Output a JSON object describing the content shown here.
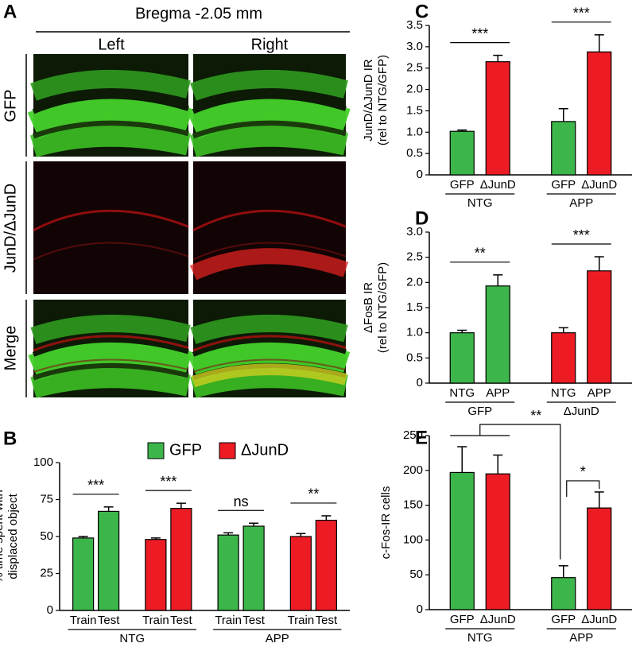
{
  "panel_a": {
    "panel": "A",
    "title": "Bregma -2.05 mm",
    "columns": [
      "Left",
      "Right"
    ],
    "rows": [
      "GFP",
      "JunD/ΔJunD",
      "Merge"
    ]
  },
  "chart_data": [
    {
      "type": "bar",
      "panel": "B",
      "ylabel": [
        "% time spent with",
        "displaced object"
      ],
      "categories": [
        "Train",
        "Test",
        "Train",
        "Test",
        "Train",
        "Test",
        "Train",
        "Test"
      ],
      "series": [
        {
          "name": "GFP",
          "color": "#3cb54a",
          "values": [
            49,
            67,
            null,
            null,
            51,
            57,
            null,
            null
          ],
          "errors": [
            1,
            3,
            null,
            null,
            1.5,
            2,
            null,
            null
          ]
        },
        {
          "name": "ΔJunD",
          "color": "#ed1c24",
          "values": [
            null,
            null,
            48,
            69,
            null,
            null,
            50,
            61
          ],
          "errors": [
            null,
            null,
            1,
            3.5,
            null,
            null,
            2,
            3
          ]
        }
      ],
      "groups": [
        "NTG",
        "APP"
      ],
      "significance": [
        "***",
        "***",
        "ns",
        "**"
      ],
      "ylim": [
        0,
        100
      ],
      "yticks": [
        0,
        25,
        50,
        75,
        100
      ]
    },
    {
      "type": "bar",
      "panel": "C",
      "ylabel": [
        "JunD/ΔJunD IR",
        "(rel to NTG/GFP)"
      ],
      "categories": [
        "GFP",
        "ΔJunD",
        "GFP",
        "ΔJunD"
      ],
      "values": [
        1.02,
        2.65,
        1.25,
        2.88
      ],
      "errors": [
        0.03,
        0.15,
        0.3,
        0.4
      ],
      "colors": [
        "#3cb54a",
        "#ed1c24",
        "#3cb54a",
        "#ed1c24"
      ],
      "groups": [
        "NTG",
        "APP"
      ],
      "significance": [
        "***",
        "***"
      ],
      "ylim": [
        0,
        3.5
      ],
      "yticks": [
        0,
        0.5,
        {
          "value": 1,
          "label": "1.0"
        },
        1.5,
        {
          "value": 2,
          "label": "2.0"
        },
        2.5,
        {
          "value": 3,
          "label": "3.0"
        },
        3.5
      ]
    },
    {
      "type": "bar",
      "panel": "D",
      "ylabel": [
        "ΔFosB IR",
        "(rel to NTG/GFP)"
      ],
      "categories": [
        "NTG",
        "APP",
        "NTG",
        "APP"
      ],
      "values": [
        1.0,
        1.93,
        1.0,
        2.23
      ],
      "errors": [
        0.05,
        0.22,
        0.1,
        0.28
      ],
      "colors": [
        "#3cb54a",
        "#3cb54a",
        "#ed1c24",
        "#ed1c24"
      ],
      "groups": [
        "GFP",
        "ΔJunD"
      ],
      "significance": [
        "**",
        "***"
      ],
      "ylim": [
        0,
        3
      ],
      "yticks": [
        0,
        0.5,
        {
          "value": 1,
          "label": "1.0"
        },
        1.5,
        {
          "value": 2,
          "label": "2.0"
        },
        2.5,
        {
          "value": 3,
          "label": "3.0"
        }
      ]
    },
    {
      "type": "bar",
      "panel": "E",
      "ylabel": [
        "c-Fos-IR cells"
      ],
      "categories": [
        "GFP",
        "ΔJunD",
        "GFP",
        "ΔJunD"
      ],
      "values": [
        197,
        195,
        46,
        146
      ],
      "errors": [
        37,
        27,
        17,
        23
      ],
      "colors": [
        "#3cb54a",
        "#ed1c24",
        "#3cb54a",
        "#ed1c24"
      ],
      "groups": [
        "NTG",
        "APP"
      ],
      "significance": [
        "**",
        "*"
      ],
      "ylim": [
        0,
        250
      ],
      "yticks": [
        0,
        50,
        100,
        150,
        200,
        250
      ]
    }
  ]
}
